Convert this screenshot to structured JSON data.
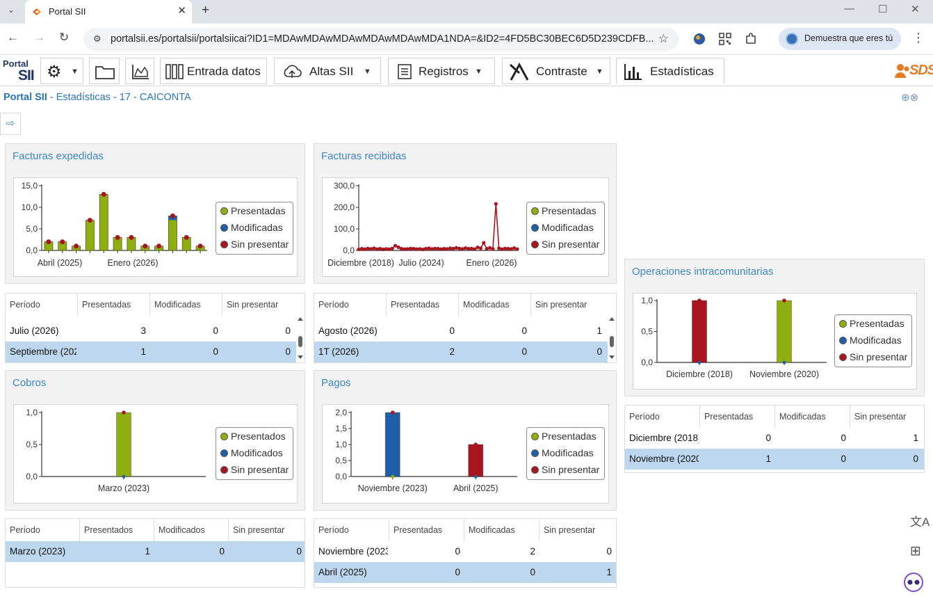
{
  "browser": {
    "tab_title": "Portal SII",
    "url": "portalsii.es/portalsii/portalsiicai?ID1=MDAwMDAwMDAwMDAwMDAwMDA1NDA=&ID2=4FD5BC30BEC6D5D239CDFB...",
    "profile_label": "Demuestra que eres tú",
    "new_tab": "+",
    "close_tab": "✕"
  },
  "nav": {
    "logo_top": "Portal",
    "logo_bottom": "SII",
    "entrada": "Entrada datos",
    "altas": "Altas SII",
    "registros": "Registros",
    "contraste": "Contraste",
    "estadisticas": "Estadísticas",
    "brand": "SDS"
  },
  "breadcrumb": {
    "root": "Portal SII",
    "rest": " - Estadísticas - 17 - CAICONTA"
  },
  "legend": {
    "presentadas": "Presentadas",
    "modificadas": "Modificadas",
    "sin_presentar": "Sin presentar",
    "presentados": "Presentados",
    "modificados": "Modificados"
  },
  "colors": {
    "presentadas": "#8fae12",
    "modificadas": "#1f5fa8",
    "sin_presentar": "#a8151f"
  },
  "panels": {
    "expedidas": {
      "title": "Facturas expedidas",
      "headers": [
        "Período",
        "Presentadas",
        "Modificadas",
        "Sin presentar"
      ],
      "rows": [
        {
          "periodo": "Julio (2026)",
          "p": "3",
          "m": "0",
          "s": "0"
        },
        {
          "periodo": "Septiembre (202",
          "p": "1",
          "m": "0",
          "s": "0"
        }
      ]
    },
    "recibidas": {
      "title": "Facturas recibidas",
      "headers": [
        "Período",
        "Presentadas",
        "Modificadas",
        "Sin presentar"
      ],
      "rows": [
        {
          "periodo": "Agosto (2026)",
          "p": "0",
          "m": "0",
          "s": "1"
        },
        {
          "periodo": "1T (2026)",
          "p": "2",
          "m": "0",
          "s": "0"
        }
      ]
    },
    "intra": {
      "title": "Operaciones intracomunitarias",
      "headers": [
        "Período",
        "Presentadas",
        "Modificadas",
        "Sin presentar"
      ],
      "rows": [
        {
          "periodo": "Diciembre (2018)",
          "p": "0",
          "m": "0",
          "s": "1"
        },
        {
          "periodo": "Noviembre (2020",
          "p": "1",
          "m": "0",
          "s": "0"
        }
      ]
    },
    "cobros": {
      "title": "Cobros",
      "headers": [
        "Período",
        "Presentados",
        "Modificados",
        "Sin presentar"
      ],
      "rows": [
        {
          "periodo": "Marzo (2023)",
          "p": "1",
          "m": "0",
          "s": "0"
        }
      ]
    },
    "pagos": {
      "title": "Pagos",
      "headers": [
        "Período",
        "Presentadas",
        "Modificadas",
        "Sin presentar"
      ],
      "rows": [
        {
          "periodo": "Noviembre (2023",
          "p": "0",
          "m": "2",
          "s": "0"
        },
        {
          "periodo": "Abril (2025)",
          "p": "0",
          "m": "0",
          "s": "1"
        }
      ]
    }
  },
  "chart_data": [
    {
      "id": "expedidas",
      "type": "bar",
      "yticks": [
        "15,0",
        "10,0",
        "5,0",
        "0,0"
      ],
      "ylim": [
        0,
        15
      ],
      "xticklabels": [
        "Abril (2025)",
        "Enero (2026)"
      ],
      "values": [
        2,
        2,
        1,
        7,
        13,
        3,
        3,
        1,
        1,
        8,
        3,
        1
      ],
      "modified_index": 9,
      "series": [
        {
          "name": "Presentadas"
        },
        {
          "name": "Modificadas"
        },
        {
          "name": "Sin presentar"
        }
      ]
    },
    {
      "id": "recibidas",
      "type": "line",
      "yticks": [
        "300,0",
        "200,0",
        "100,0",
        "0,0"
      ],
      "ylim": [
        0,
        300
      ],
      "xticklabels": [
        "Diciembre (2018)",
        "Julio (2024)",
        "Enero (2026)"
      ],
      "values": [
        5,
        8,
        6,
        9,
        7,
        10,
        6,
        8,
        5,
        7,
        6,
        9,
        22,
        15,
        8,
        6,
        7,
        9,
        8,
        6,
        7,
        5,
        8,
        10,
        7,
        9,
        8,
        6,
        8,
        7,
        10,
        8,
        12,
        9,
        7,
        11,
        8,
        9,
        6,
        14,
        10,
        35,
        8,
        12,
        7,
        216,
        10,
        6,
        9,
        8,
        7,
        11,
        6
      ],
      "series": [
        {
          "name": "Presentadas"
        },
        {
          "name": "Modificadas"
        },
        {
          "name": "Sin presentar"
        }
      ]
    },
    {
      "id": "intra",
      "type": "bar",
      "yticks": [
        "1,0",
        "0,5",
        "0,0"
      ],
      "ylim": [
        0,
        1
      ],
      "categories": [
        "Diciembre (2018)",
        "Noviembre (2020)"
      ],
      "values": [
        1,
        1
      ],
      "bar_series": [
        "sin_presentar",
        "presentadas"
      ],
      "series": [
        {
          "name": "Presentadas"
        },
        {
          "name": "Modificadas"
        },
        {
          "name": "Sin presentar"
        }
      ]
    },
    {
      "id": "cobros",
      "type": "bar",
      "yticks": [
        "1,0",
        "0,5",
        "0,0"
      ],
      "ylim": [
        0,
        1
      ],
      "categories": [
        "Marzo (2023)"
      ],
      "values": [
        1
      ],
      "bar_series": [
        "presentadas"
      ],
      "series": [
        {
          "name": "Presentados"
        },
        {
          "name": "Modificados"
        },
        {
          "name": "Sin presentar"
        }
      ]
    },
    {
      "id": "pagos",
      "type": "bar",
      "yticks": [
        "2,0",
        "1,5",
        "1,0",
        "0,5",
        "0,0"
      ],
      "ylim": [
        0,
        2
      ],
      "categories": [
        "Noviembre (2023)",
        "Abril (2025)"
      ],
      "values": [
        2,
        1
      ],
      "bar_series": [
        "modificadas",
        "sin_presentar"
      ],
      "series": [
        {
          "name": "Presentadas"
        },
        {
          "name": "Modificadas"
        },
        {
          "name": "Sin presentar"
        }
      ]
    }
  ]
}
